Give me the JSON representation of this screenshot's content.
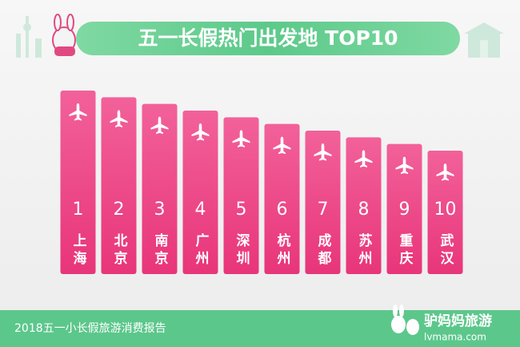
{
  "chart_data": {
    "type": "bar",
    "title": "五一长假热门出发地 TOP10",
    "categories": [
      "上海",
      "北京",
      "南京",
      "广州",
      "深圳",
      "杭州",
      "成都",
      "苏州",
      "重庆",
      "武汉"
    ],
    "values": [
      1,
      2,
      3,
      4,
      5,
      6,
      7,
      8,
      9,
      10
    ],
    "color": "#ee4f88"
  },
  "footer": {
    "source": "2018五一小长假旅游消费报告",
    "brand": "驴妈妈旅游",
    "url": "lvmama.com"
  }
}
